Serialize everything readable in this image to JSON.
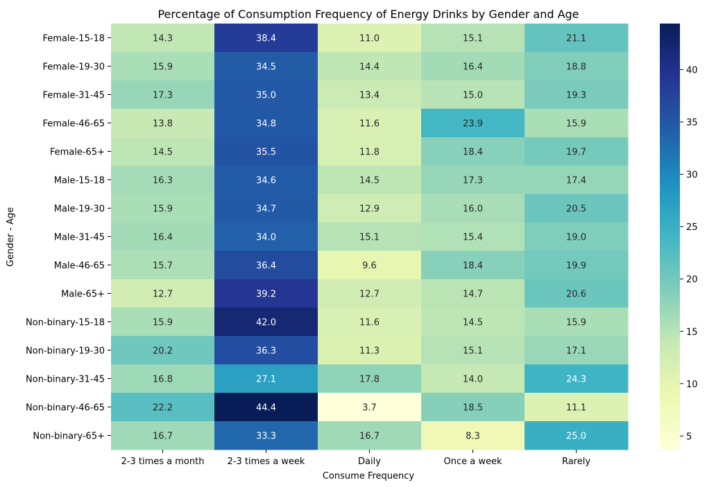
{
  "chart_data": {
    "type": "heatmap",
    "title": "Percentage of Consumption Frequency of Energy Drinks by Gender and Age",
    "xlabel": "Consume Frequency",
    "ylabel": "Gender - Age",
    "colormap": "YlGnBu",
    "colors": [
      "#ffffd9",
      "#edf8b1",
      "#c7e9b4",
      "#7fcdbb",
      "#41b6c4",
      "#1d91c0",
      "#225ea8",
      "#253494",
      "#081d58"
    ],
    "color_range": [
      3.7,
      44.4
    ],
    "colorbar_ticks": [
      "5",
      "10",
      "15",
      "20",
      "25",
      "30",
      "35",
      "40"
    ],
    "x_categories": [
      "2-3 times a month",
      "2-3 times a week",
      "Daily",
      "Once a week",
      "Rarely"
    ],
    "y_categories": [
      "Female-15-18",
      "Female-19-30",
      "Female-31-45",
      "Female-46-65",
      "Female-65+",
      "Male-15-18",
      "Male-19-30",
      "Male-31-45",
      "Male-46-65",
      "Male-65+",
      "Non-binary-15-18",
      "Non-binary-19-30",
      "Non-binary-31-45",
      "Non-binary-46-65",
      "Non-binary-65+"
    ],
    "values": [
      [
        14.3,
        38.4,
        11.0,
        15.1,
        21.1
      ],
      [
        15.9,
        34.5,
        14.4,
        16.4,
        18.8
      ],
      [
        17.3,
        35.0,
        13.4,
        15.0,
        19.3
      ],
      [
        13.8,
        34.8,
        11.6,
        23.9,
        15.9
      ],
      [
        14.5,
        35.5,
        11.8,
        18.4,
        19.7
      ],
      [
        16.3,
        34.6,
        14.5,
        17.3,
        17.4
      ],
      [
        15.9,
        34.7,
        12.9,
        16.0,
        20.5
      ],
      [
        16.4,
        34.0,
        15.1,
        15.4,
        19.0
      ],
      [
        15.7,
        36.4,
        9.6,
        18.4,
        19.9
      ],
      [
        12.7,
        39.2,
        12.7,
        14.7,
        20.6
      ],
      [
        15.9,
        42.0,
        11.6,
        14.5,
        15.9
      ],
      [
        20.2,
        36.3,
        11.3,
        15.1,
        17.1
      ],
      [
        16.8,
        27.1,
        17.8,
        14.0,
        24.3
      ],
      [
        22.2,
        44.4,
        3.7,
        18.5,
        11.1
      ],
      [
        16.7,
        33.3,
        16.7,
        8.3,
        25.0
      ]
    ]
  }
}
